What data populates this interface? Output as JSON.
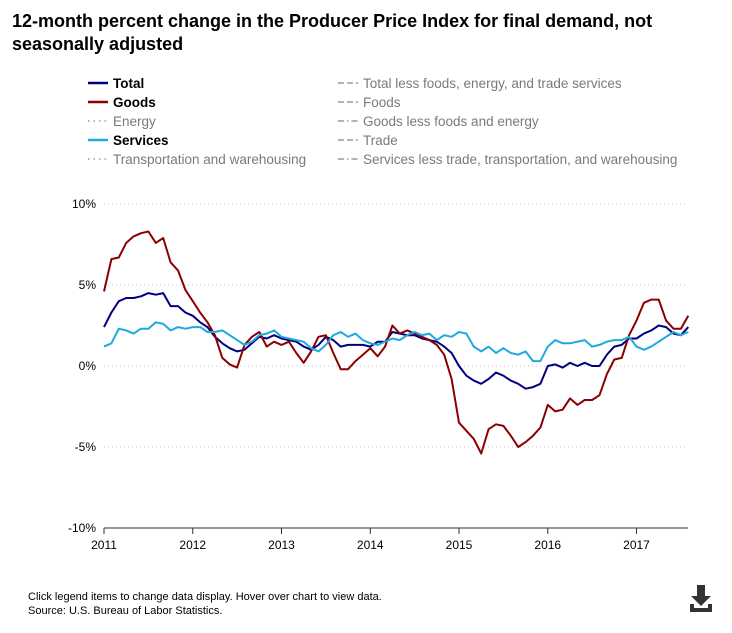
{
  "title": "12-month percent change in the Producer Price Index for final demand, not seasonally adjusted",
  "legend": {
    "left": [
      {
        "label": "Total",
        "active": true,
        "color": "#000080",
        "dash": "solid"
      },
      {
        "label": "Goods",
        "active": true,
        "color": "#8b0000",
        "dash": "solid"
      },
      {
        "label": "Energy",
        "active": false,
        "color": "#9a9a9a",
        "dash": "dotted"
      },
      {
        "label": "Services",
        "active": true,
        "color": "#1fa9e1",
        "dash": "solid"
      },
      {
        "label": "Transportation and warehousing",
        "active": false,
        "color": "#9a9a9a",
        "dash": "dotted"
      }
    ],
    "right": [
      {
        "label": "Total less foods, energy, and trade services",
        "active": false,
        "color": "#9a9a9a",
        "dash": "dashed"
      },
      {
        "label": "Foods",
        "active": false,
        "color": "#9a9a9a",
        "dash": "dashed"
      },
      {
        "label": "Goods less foods and energy",
        "active": false,
        "color": "#9a9a9a",
        "dash": "dashdot"
      },
      {
        "label": "Trade",
        "active": false,
        "color": "#9a9a9a",
        "dash": "dashed"
      },
      {
        "label": "Services less trade, transportation, and warehousing",
        "active": false,
        "color": "#9a9a9a",
        "dash": "dashdot"
      }
    ]
  },
  "footer": {
    "note": "Click legend items to change data display. Hover over chart to view data.",
    "source": "Source: U.S. Bureau of Labor Statistics."
  },
  "icons": {
    "download": "download-icon"
  },
  "chart_data": {
    "type": "line",
    "title": "12-month percent change in the Producer Price Index for final demand, not seasonally adjusted",
    "xlabel": "",
    "ylabel": "",
    "x_start": "2011-01",
    "x_step": "month",
    "xlim": [
      2011.0,
      2017.58
    ],
    "ylim": [
      -10,
      10
    ],
    "yticks": [
      -10,
      -5,
      0,
      5,
      10
    ],
    "ytick_labels": [
      "-10%",
      "-5%",
      "0%",
      "5%",
      "10%"
    ],
    "xticks": [
      2011,
      2012,
      2013,
      2014,
      2015,
      2016,
      2017
    ],
    "xtick_labels": [
      "2011",
      "2012",
      "2013",
      "2014",
      "2015",
      "2016",
      "2017"
    ],
    "grid": "horizontal dotted",
    "series": [
      {
        "name": "Total",
        "color": "#000080",
        "values": [
          2.4,
          3.3,
          4.0,
          4.2,
          4.2,
          4.3,
          4.5,
          4.4,
          4.5,
          3.7,
          3.7,
          3.3,
          3.1,
          2.7,
          2.4,
          1.8,
          1.4,
          1.1,
          0.9,
          1.0,
          1.4,
          1.8,
          1.7,
          1.9,
          1.7,
          1.6,
          1.5,
          1.2,
          1.0,
          1.3,
          1.8,
          1.6,
          1.2,
          1.3,
          1.3,
          1.3,
          1.2,
          1.5,
          1.5,
          2.1,
          2.0,
          1.9,
          1.9,
          1.7,
          1.6,
          1.5,
          1.2,
          0.8,
          0.0,
          -0.6,
          -0.9,
          -1.1,
          -0.8,
          -0.4,
          -0.6,
          -0.9,
          -1.1,
          -1.4,
          -1.3,
          -1.1,
          0.0,
          0.1,
          -0.1,
          0.2,
          0.0,
          0.2,
          0.0,
          0.0,
          0.7,
          1.2,
          1.3,
          1.7,
          1.7,
          2.0,
          2.2,
          2.5,
          2.4,
          2.0,
          1.9,
          2.4
        ]
      },
      {
        "name": "Goods",
        "color": "#8b0000",
        "values": [
          4.6,
          6.6,
          6.7,
          7.6,
          8.0,
          8.2,
          8.3,
          7.6,
          7.9,
          6.4,
          5.9,
          4.7,
          4.0,
          3.3,
          2.7,
          1.9,
          0.5,
          0.1,
          -0.1,
          1.3,
          1.8,
          2.1,
          1.2,
          1.5,
          1.3,
          1.5,
          0.8,
          0.2,
          0.9,
          1.8,
          1.9,
          0.8,
          -0.2,
          -0.2,
          0.3,
          0.7,
          1.1,
          0.6,
          1.2,
          2.5,
          2.0,
          2.2,
          2.0,
          1.8,
          1.6,
          1.3,
          0.7,
          -0.8,
          -3.5,
          -4.0,
          -4.5,
          -5.4,
          -3.9,
          -3.6,
          -3.7,
          -4.3,
          -5.0,
          -4.7,
          -4.3,
          -3.8,
          -2.4,
          -2.8,
          -2.7,
          -2.0,
          -2.4,
          -2.1,
          -2.1,
          -1.8,
          -0.5,
          0.4,
          0.5,
          1.9,
          2.8,
          3.9,
          4.1,
          4.1,
          2.8,
          2.3,
          2.3,
          3.1
        ]
      },
      {
        "name": "Services",
        "color": "#1fa9e1",
        "values": [
          1.2,
          1.4,
          2.3,
          2.2,
          2.0,
          2.3,
          2.3,
          2.7,
          2.6,
          2.2,
          2.4,
          2.3,
          2.4,
          2.4,
          2.1,
          2.1,
          2.2,
          1.9,
          1.6,
          1.3,
          1.5,
          1.9,
          2.0,
          2.2,
          1.8,
          1.7,
          1.6,
          1.5,
          1.1,
          0.9,
          1.3,
          1.9,
          2.1,
          1.8,
          2.0,
          1.6,
          1.4,
          1.3,
          1.5,
          1.7,
          1.6,
          1.9,
          2.1,
          1.9,
          2.0,
          1.6,
          1.9,
          1.8,
          2.1,
          2.0,
          1.2,
          0.9,
          1.2,
          0.8,
          1.1,
          0.8,
          0.7,
          0.9,
          0.3,
          0.3,
          1.2,
          1.6,
          1.4,
          1.4,
          1.5,
          1.6,
          1.2,
          1.3,
          1.5,
          1.6,
          1.6,
          1.8,
          1.2,
          1.0,
          1.2,
          1.5,
          1.8,
          2.1,
          1.9,
          2.1
        ]
      }
    ]
  }
}
